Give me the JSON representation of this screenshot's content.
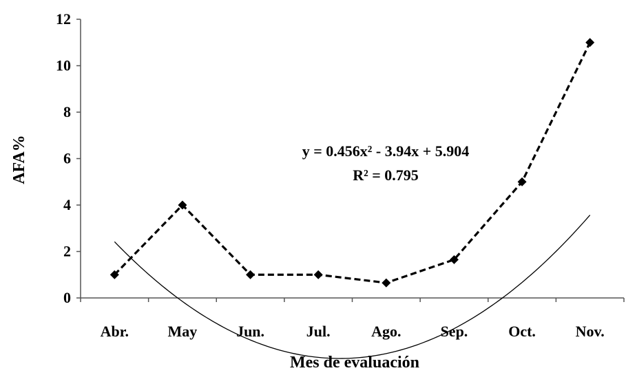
{
  "chart_data": {
    "type": "line",
    "categories": [
      "Abr.",
      "May",
      "Jun.",
      "Jul.",
      "Ago.",
      "Sep.",
      "Oct.",
      "Nov."
    ],
    "series": [
      {
        "values": [
          1.0,
          4.0,
          1.0,
          1.0,
          0.65,
          1.65,
          5.0,
          11.0
        ],
        "style": "dashed",
        "marker": "diamond",
        "color": "#000000"
      }
    ],
    "trendline": {
      "type": "polynomial",
      "coefficients": {
        "a": 0.456,
        "b": -3.94,
        "c": 5.904
      },
      "color": "#000000"
    },
    "equation": "y = 0.456x² - 3.94x + 5.904",
    "r_squared": "R² = 0.795",
    "xlabel": "Mes de evaluación",
    "ylabel": "AFA%",
    "ylim": [
      0,
      12
    ],
    "yticks": [
      "0",
      "2",
      "4",
      "6",
      "8",
      "10",
      "12"
    ],
    "grid": false
  }
}
